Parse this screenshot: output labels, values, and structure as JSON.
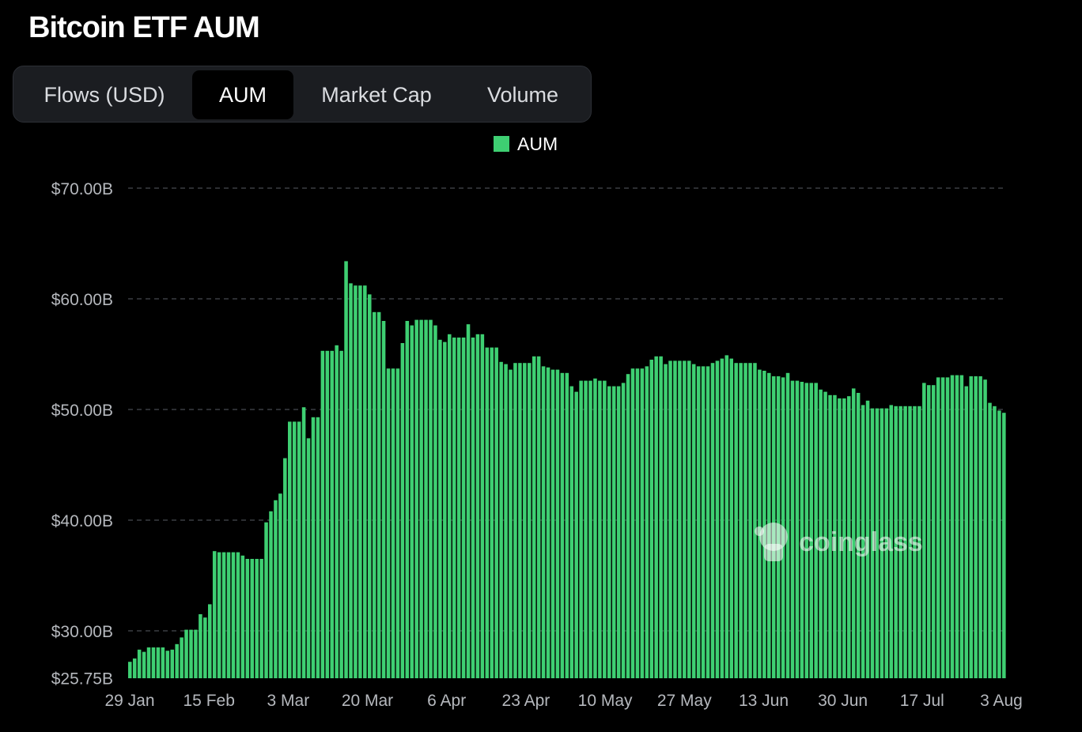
{
  "title": "Bitcoin ETF AUM",
  "tabs": [
    {
      "label": "Flows (USD)",
      "active": false
    },
    {
      "label": "AUM",
      "active": true
    },
    {
      "label": "Market Cap",
      "active": false
    },
    {
      "label": "Volume",
      "active": false
    }
  ],
  "watermark": "coinglass",
  "colors": {
    "bar": "#3ecf72",
    "grid": "#3a3d42",
    "background": "#000000"
  },
  "chart_data": {
    "type": "bar",
    "title": "Bitcoin ETF AUM",
    "legend": [
      "AUM"
    ],
    "legend_position": "top-center",
    "grid": true,
    "x_tick_labels": [
      "29 Jan",
      "15 Feb",
      "3 Mar",
      "20 Mar",
      "6 Apr",
      "23 Apr",
      "10 May",
      "27 May",
      "13 Jun",
      "30 Jun",
      "17 Jul",
      "3 Aug"
    ],
    "y_ticks": [
      25.75,
      30,
      40,
      50,
      60,
      70
    ],
    "y_tick_labels": [
      "$25.75B",
      "$30.00B",
      "$40.00B",
      "$50.00B",
      "$60.00B",
      "$70.00B"
    ],
    "ylim": [
      25.75,
      70
    ],
    "unit": "USD billions",
    "series": [
      {
        "name": "AUM",
        "values": [
          27.2,
          27.5,
          28.3,
          28.1,
          28.5,
          28.5,
          28.5,
          28.5,
          28.2,
          28.3,
          28.8,
          29.4,
          30.1,
          30.1,
          30.1,
          31.5,
          31.2,
          32.4,
          37.2,
          37.1,
          37.1,
          37.1,
          37.1,
          37.1,
          36.8,
          36.5,
          36.5,
          36.5,
          36.5,
          39.8,
          40.8,
          41.8,
          42.4,
          45.6,
          48.9,
          48.9,
          48.9,
          50.2,
          47.4,
          49.3,
          49.3,
          55.3,
          55.3,
          55.3,
          55.8,
          55.3,
          63.4,
          61.4,
          61.2,
          61.2,
          61.2,
          60.4,
          58.8,
          58.8,
          58.0,
          53.7,
          53.7,
          53.7,
          56.0,
          58.0,
          57.6,
          58.1,
          58.1,
          58.1,
          58.1,
          57.6,
          56.3,
          56.1,
          56.8,
          56.5,
          56.5,
          56.5,
          57.7,
          56.5,
          56.8,
          56.8,
          55.6,
          55.6,
          55.6,
          54.3,
          54.1,
          53.6,
          54.2,
          54.2,
          54.2,
          54.2,
          54.8,
          54.8,
          53.9,
          53.8,
          53.6,
          53.6,
          53.3,
          53.3,
          52.1,
          51.6,
          52.6,
          52.6,
          52.6,
          52.8,
          52.6,
          52.6,
          52.1,
          52.1,
          52.1,
          52.4,
          53.2,
          53.7,
          53.7,
          53.7,
          53.9,
          54.5,
          54.8,
          54.8,
          54.1,
          54.4,
          54.4,
          54.4,
          54.4,
          54.4,
          54.1,
          53.9,
          53.9,
          53.9,
          54.2,
          54.4,
          54.6,
          54.9,
          54.6,
          54.2,
          54.2,
          54.2,
          54.2,
          54.2,
          53.6,
          53.5,
          53.3,
          53.0,
          53.0,
          52.9,
          53.3,
          52.6,
          52.6,
          52.5,
          52.4,
          52.4,
          52.4,
          51.8,
          51.6,
          51.3,
          51.3,
          51.0,
          51.0,
          51.2,
          51.9,
          51.5,
          50.4,
          50.8,
          50.1,
          50.1,
          50.1,
          50.1,
          50.4,
          50.3,
          50.3,
          50.3,
          50.3,
          50.3,
          50.3,
          52.4,
          52.2,
          52.2,
          52.9,
          52.9,
          52.9,
          53.1,
          53.1,
          53.1,
          52.1,
          53.0,
          53.0,
          53.0,
          52.7,
          50.6,
          50.3,
          49.9,
          49.7
        ]
      }
    ]
  }
}
